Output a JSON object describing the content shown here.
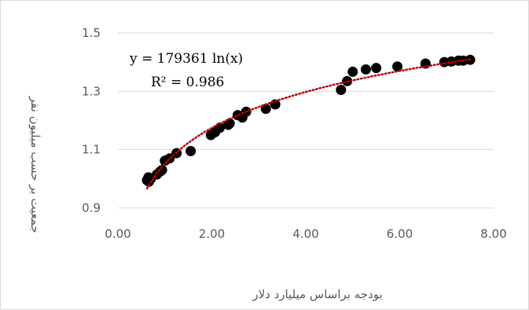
{
  "chart_data": {
    "type": "scatter",
    "xlabel": "بودجه براساس میلیارد دلار",
    "ylabel": "جمعیت بر حسب میلیون نفر",
    "xlim": [
      0,
      8
    ],
    "ylim": [
      0.9,
      1.5
    ],
    "x_ticks": [
      "0.00",
      "2.00",
      "4.00",
      "6.00",
      "8.00"
    ],
    "y_ticks": [
      "0.9",
      "1.1",
      "1.3",
      "1.5"
    ],
    "grid": "horizontal",
    "legend": "none",
    "trendline": {
      "type": "logarithmic",
      "style": "dotted",
      "equation": "y = 179361 ln(x)",
      "r_squared": "R² = 0.986",
      "color": "#c00000"
    },
    "marker_color": "#000000",
    "series": [
      {
        "x": [
          0.62,
          0.65,
          0.66,
          0.7,
          0.83,
          0.9,
          0.94,
          1.0,
          1.1,
          1.25,
          1.55,
          1.98,
          2.07,
          2.17,
          2.35,
          2.38,
          2.55,
          2.65,
          2.73,
          3.15,
          3.35,
          4.75,
          4.88,
          5.0,
          5.28,
          5.5,
          5.95,
          6.55,
          6.95,
          7.1,
          7.25,
          7.35,
          7.5
        ],
        "y": [
          0.995,
          1.005,
          0.99,
          1.0,
          1.015,
          1.025,
          1.03,
          1.062,
          1.07,
          1.088,
          1.095,
          1.15,
          1.16,
          1.175,
          1.185,
          1.19,
          1.218,
          1.21,
          1.23,
          1.24,
          1.255,
          1.305,
          1.335,
          1.367,
          1.375,
          1.38,
          1.385,
          1.395,
          1.4,
          1.402,
          1.405,
          1.405,
          1.408
        ]
      }
    ]
  }
}
